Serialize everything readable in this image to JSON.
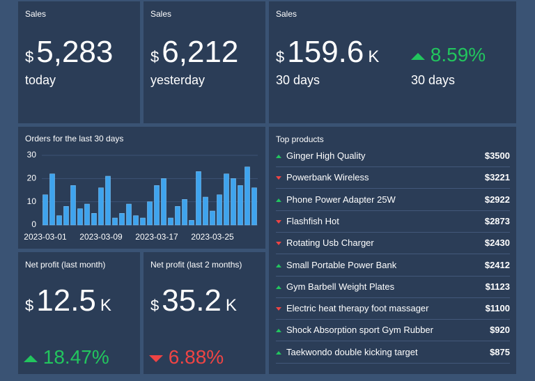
{
  "cards": [
    {
      "title": "Sales",
      "currency": "$",
      "value": "5,283",
      "caption": "today"
    },
    {
      "title": "Sales",
      "currency": "$",
      "value": "6,212",
      "caption": "yesterday"
    },
    {
      "title": "Sales",
      "currency": "$",
      "value": "159.6",
      "unit": "K",
      "caption": "30 days",
      "change": "8.59%",
      "change_caption": "30 days",
      "trend": "up"
    },
    {
      "title": "Net profit (last month)",
      "currency": "$",
      "value": "12.5",
      "unit": "K",
      "change": "18.47%",
      "trend": "up"
    },
    {
      "title": "Net profit (last 2 months)",
      "currency": "$",
      "value": "35.2",
      "unit": "K",
      "change": "6.88%",
      "trend": "down"
    }
  ],
  "orders_chart": {
    "type": "bar",
    "title": "Orders for the last 30 days",
    "categories": [
      "2023-03-01",
      null,
      null,
      null,
      null,
      null,
      null,
      null,
      "2023-03-09",
      null,
      null,
      null,
      null,
      null,
      null,
      null,
      "2023-03-17",
      null,
      null,
      null,
      null,
      null,
      null,
      null,
      "2023-03-25",
      null,
      null,
      null,
      null,
      null,
      null
    ],
    "values": [
      13,
      22,
      4,
      8,
      17,
      7,
      9,
      5,
      16,
      21,
      3,
      5,
      9,
      4,
      3,
      10,
      17,
      20,
      3,
      8,
      11,
      2,
      23,
      12,
      6,
      13,
      22,
      20,
      17,
      25,
      16
    ],
    "color": "#3fa4ee",
    "ylim": [
      0,
      30
    ],
    "yticks": [
      0,
      10,
      20,
      30
    ],
    "grid": true
  },
  "top_products": {
    "title": "Top products",
    "items": [
      {
        "name": "Ginger High Quality",
        "value": "$3500",
        "trend": "up"
      },
      {
        "name": "Powerbank Wireless",
        "value": "$3221",
        "trend": "down"
      },
      {
        "name": "Phone Power Adapter 25W",
        "value": "$2922",
        "trend": "up"
      },
      {
        "name": "Flashfish Hot",
        "value": "$2873",
        "trend": "down"
      },
      {
        "name": "Rotating Usb Charger",
        "value": "$2430",
        "trend": "down"
      },
      {
        "name": "Small Portable Power Bank",
        "value": "$2412",
        "trend": "up"
      },
      {
        "name": "Gym Barbell Weight Plates",
        "value": "$1123",
        "trend": "up"
      },
      {
        "name": "Electric heat therapy foot massager",
        "value": "$1100",
        "trend": "down"
      },
      {
        "name": "Shock Absorption sport Gym Rubber",
        "value": "$920",
        "trend": "up"
      },
      {
        "name": "Taekwondo double kicking target",
        "value": "$875",
        "trend": "up"
      }
    ]
  }
}
